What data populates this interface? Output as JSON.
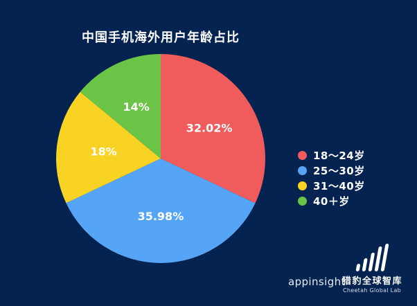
{
  "chart_data": {
    "type": "pie",
    "title": "中国手机海外用户年龄占比",
    "start_angle_deg": 0,
    "direction": "clockwise",
    "center": [
      232,
      229
    ],
    "radius": 151,
    "label_radius_factor": 0.55,
    "legend_position": "right",
    "slices": [
      {
        "label": "18～24岁",
        "value": 32.02,
        "display": "32.02%",
        "color": "#F05B5C"
      },
      {
        "label": "25～30岁",
        "value": 35.98,
        "display": "35.98%",
        "color": "#55A4F6"
      },
      {
        "label": "31～40岁",
        "value": 18,
        "display": "18%",
        "color": "#F8D324"
      },
      {
        "label": "40＋岁",
        "value": 14,
        "display": "14%",
        "color": "#6CC447"
      }
    ]
  },
  "colors": {
    "background": "#042350",
    "text": "#ffffff"
  },
  "footer": {
    "appinsight": "appinsight",
    "lab_name_cn": "猎豹全球智库",
    "lab_name_en": "Cheetah Global Lab"
  },
  "icons": {
    "lab_logo": "bar-chart-icon"
  }
}
